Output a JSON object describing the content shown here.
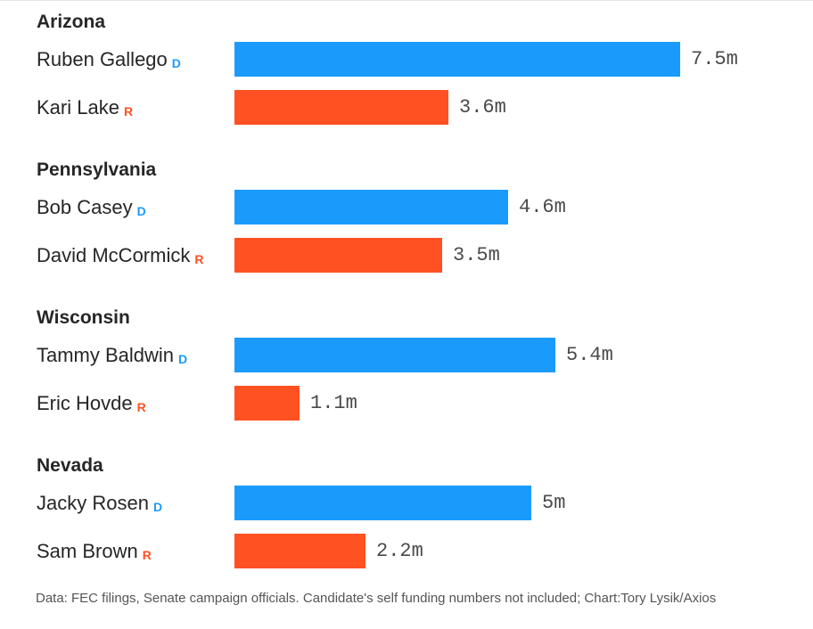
{
  "chart_data": {
    "type": "bar",
    "orientation": "horizontal",
    "unit": "m",
    "xlim": [
      0,
      7.5
    ],
    "groups": [
      {
        "state": "Arizona",
        "candidates": [
          {
            "name": "Ruben Gallego",
            "party": "D",
            "value": 7.5,
            "label": "7.5m"
          },
          {
            "name": "Kari Lake",
            "party": "R",
            "value": 3.6,
            "label": "3.6m"
          }
        ]
      },
      {
        "state": "Pennsylvania",
        "candidates": [
          {
            "name": "Bob Casey",
            "party": "D",
            "value": 4.6,
            "label": "4.6m"
          },
          {
            "name": "David McCormick",
            "party": "R",
            "value": 3.5,
            "label": "3.5m"
          }
        ]
      },
      {
        "state": "Wisconsin",
        "candidates": [
          {
            "name": "Tammy Baldwin",
            "party": "D",
            "value": 5.4,
            "label": "5.4m"
          },
          {
            "name": "Eric Hovde",
            "party": "R",
            "value": 1.1,
            "label": "1.1m"
          }
        ]
      },
      {
        "state": "Nevada",
        "candidates": [
          {
            "name": "Jacky Rosen",
            "party": "D",
            "value": 5.0,
            "label": "5m"
          },
          {
            "name": "Sam Brown",
            "party": "R",
            "value": 2.2,
            "label": "2.2m"
          }
        ]
      }
    ],
    "colors": {
      "D": "#1a9bfc",
      "R": "#ff5122"
    }
  },
  "footnote": "Data: FEC filings, Senate campaign officials. Candidate's self funding numbers not included; Chart:Tory Lysik/Axios"
}
